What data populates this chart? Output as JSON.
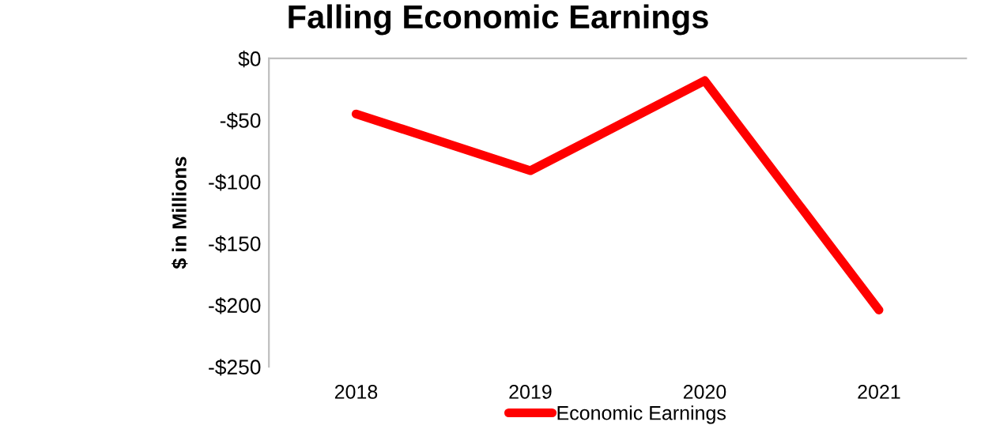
{
  "chart_data": {
    "type": "line",
    "title": "Falling Economic Earnings",
    "ylabel": "$ in Millions",
    "categories": [
      "2018",
      "2019",
      "2020",
      "2021"
    ],
    "series": [
      {
        "name": "Economic Earnings",
        "color": "#ff0000",
        "values": [
          -45,
          -91,
          -18,
          -204
        ]
      }
    ],
    "ylim": [
      -250,
      0
    ],
    "yticks": [
      {
        "value": -250,
        "label": "-$250"
      },
      {
        "value": -200,
        "label": "-$200"
      },
      {
        "value": -150,
        "label": "-$150"
      },
      {
        "value": -100,
        "label": "-$100"
      },
      {
        "value": -50,
        "label": "-$50"
      },
      {
        "value": 0,
        "label": "$0"
      }
    ],
    "grid": false,
    "legend": "bottom",
    "marker": "none",
    "line_style": "solid"
  }
}
